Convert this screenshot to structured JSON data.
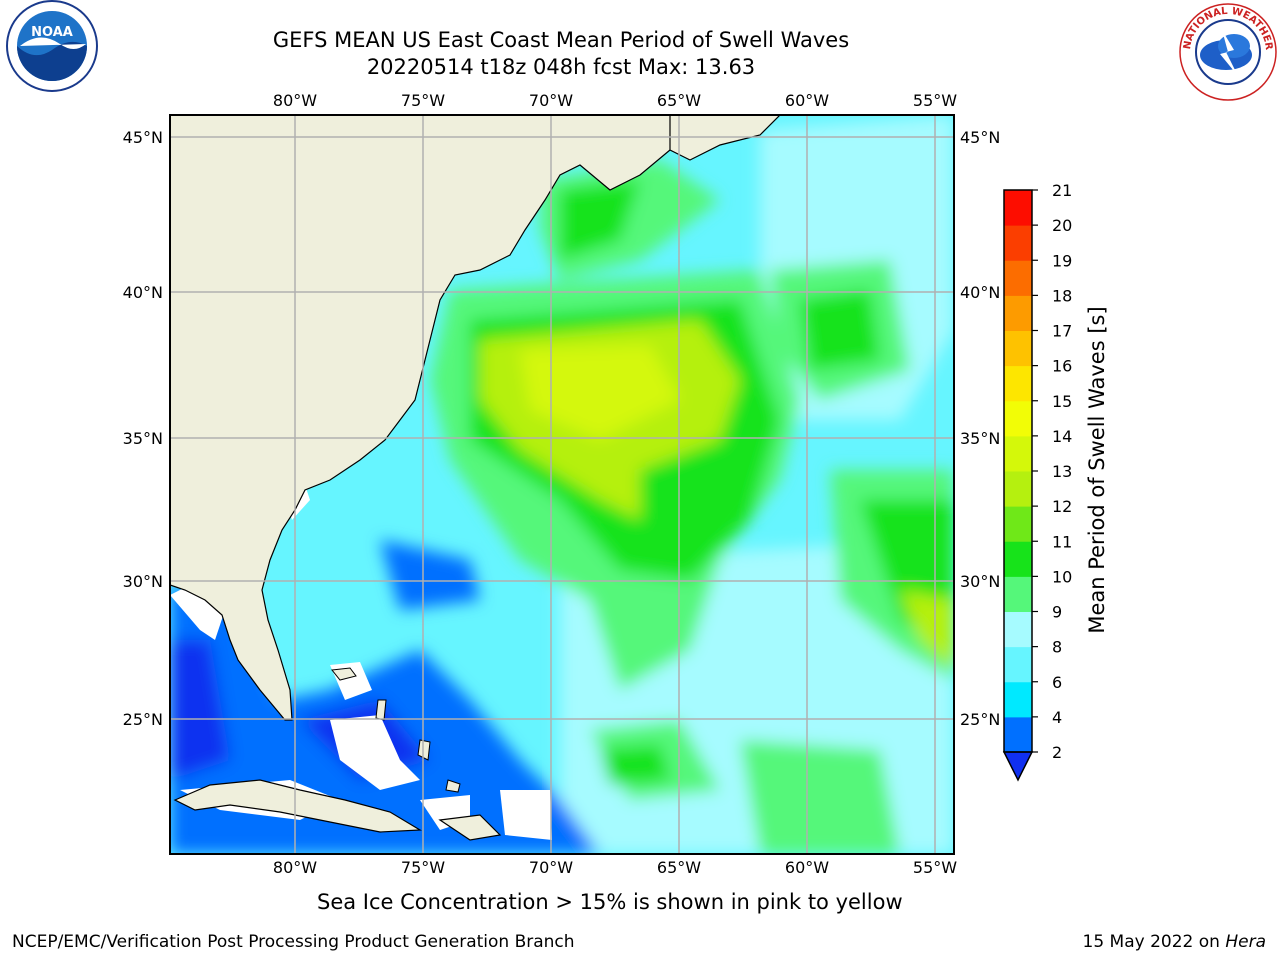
{
  "title_line1": "GEFS MEAN US East Coast Mean Period of Swell Waves",
  "title_line2": "20220514 t18z 048h fcst   Max: 13.63",
  "map": {
    "lon_labels": [
      "80°W",
      "75°W",
      "70°W",
      "65°W",
      "60°W",
      "55°W"
    ],
    "lat_labels": [
      "45°N",
      "40°N",
      "35°N",
      "30°N",
      "25°N"
    ],
    "lon_values": [
      -80,
      -75,
      -70,
      -65,
      -60,
      -55
    ],
    "lat_values": [
      45,
      40,
      35,
      30,
      25
    ],
    "land_color": "#efefdc",
    "grid_color": "#b0b0b0"
  },
  "colorbar": {
    "label": "Mean Period of Swell Waves [s]",
    "tick_labels": [
      "2",
      "4",
      "6",
      "8",
      "9",
      "10",
      "11",
      "12",
      "13",
      "14",
      "15",
      "16",
      "17",
      "18",
      "19",
      "20",
      "21"
    ],
    "colors": [
      "#0070ff",
      "#00e9ff",
      "#66f5ff",
      "#a6fbff",
      "#55f77a",
      "#17e31a",
      "#6fe818",
      "#b5f00f",
      "#d4f80a",
      "#f2fd06",
      "#fde600",
      "#fec200",
      "#fd9b00",
      "#fc6d00",
      "#fb3e00",
      "#fd0d00"
    ],
    "under_color": "#1030f0"
  },
  "footnote": "Sea Ice Concentration > 15% is shown in pink to yellow",
  "credit": "NCEP/EMC/Verification Post Processing Product Generation Branch",
  "date_text": "15 May 2022 on ",
  "date_machine": "Hera",
  "logos": {
    "left": "NOAA",
    "right": "NATIONAL WEATHER SERVICE"
  }
}
